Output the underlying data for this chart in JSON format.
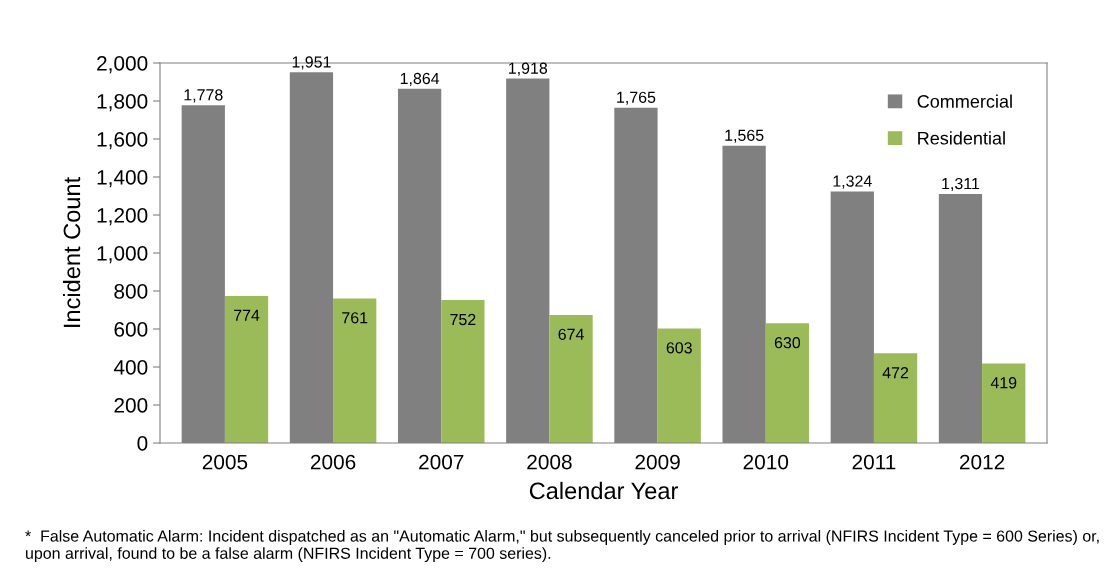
{
  "chart_data": {
    "type": "bar",
    "xlabel": "Calendar Year",
    "ylabel": "Incident Count",
    "categories": [
      "2005",
      "2006",
      "2007",
      "2008",
      "2009",
      "2010",
      "2011",
      "2012"
    ],
    "series": [
      {
        "name": "Commercial",
        "color": "#808080",
        "values": [
          1778,
          1951,
          1864,
          1918,
          1765,
          1565,
          1324,
          1311
        ],
        "value_labels": [
          "1,778",
          "1,951",
          "1,864",
          "1,918",
          "1,765",
          "1,565",
          "1,324",
          "1,311"
        ]
      },
      {
        "name": "Residential",
        "color": "#9bbb59",
        "values": [
          774,
          761,
          752,
          674,
          603,
          630,
          472,
          419
        ],
        "value_labels": [
          "774",
          "761",
          "752",
          "674",
          "603",
          "630",
          "472",
          "419"
        ]
      }
    ],
    "ylim": [
      0,
      2000
    ],
    "yticks": [
      0,
      {
        "value": 200,
        "label": "200"
      },
      {
        "value": 400,
        "label": "400"
      },
      {
        "value": 600,
        "label": "600"
      },
      {
        "value": 800,
        "label": "800"
      },
      {
        "value": 1000,
        "label": "1,000"
      },
      {
        "value": 1200,
        "label": "1,200"
      },
      {
        "value": 1400,
        "label": "1,400"
      },
      {
        "value": 1600,
        "label": "1,600"
      },
      {
        "value": 1800,
        "label": "1,800"
      },
      {
        "value": 2000,
        "label": "2,000"
      }
    ],
    "grid": false,
    "legend": "top right",
    "annotations": [
      "*  False Automatic Alarm: Incident dispatched as an \"Automatic Alarm,\" but subsequently canceled prior to arrival (NFIRS Incident Type = 600 Series) or, upon arrival, found to be a false alarm (NFIRS Incident Type = 700 series)."
    ]
  }
}
